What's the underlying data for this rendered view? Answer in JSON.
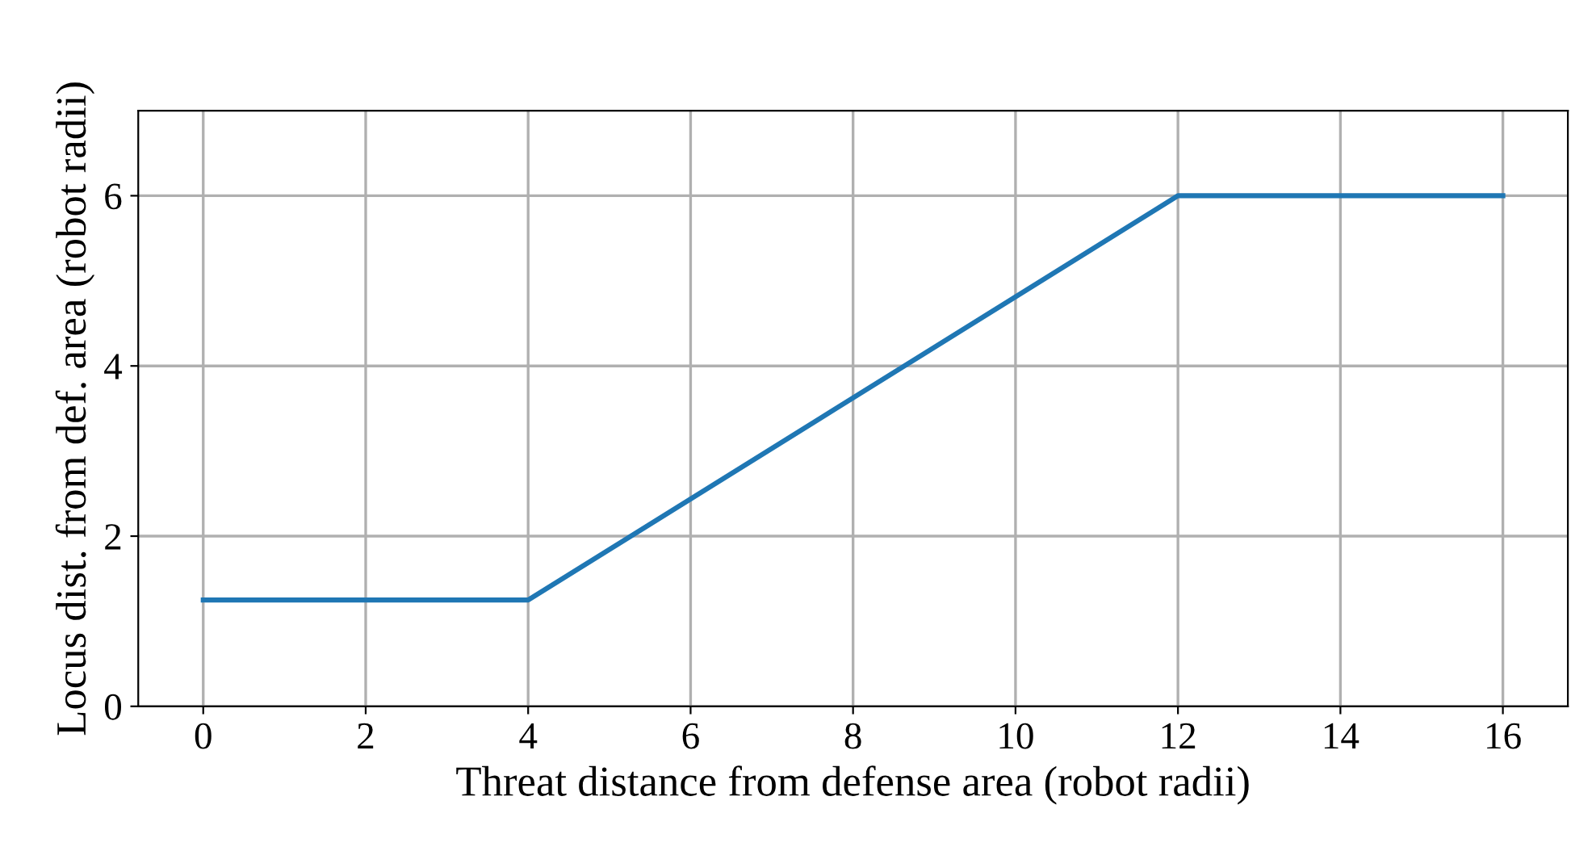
{
  "chart_data": {
    "type": "line",
    "xlabel": "Threat distance from defense area (robot radii)",
    "ylabel": "Locus dist. from def. area (robot radii)",
    "series": [
      {
        "color": "#1f77b4",
        "x": [
          0,
          4,
          12,
          16
        ],
        "values": [
          1.25,
          1.25,
          6,
          6
        ]
      }
    ],
    "xlim": [
      -0.8,
      16.8
    ],
    "xticks": [
      0,
      2,
      4,
      6,
      8,
      10,
      12,
      14,
      16
    ],
    "ylim": [
      0,
      7
    ],
    "yticks": [
      0,
      2,
      4,
      6
    ],
    "grid": true,
    "legend": false,
    "marker": "none",
    "line_style": "solid"
  }
}
